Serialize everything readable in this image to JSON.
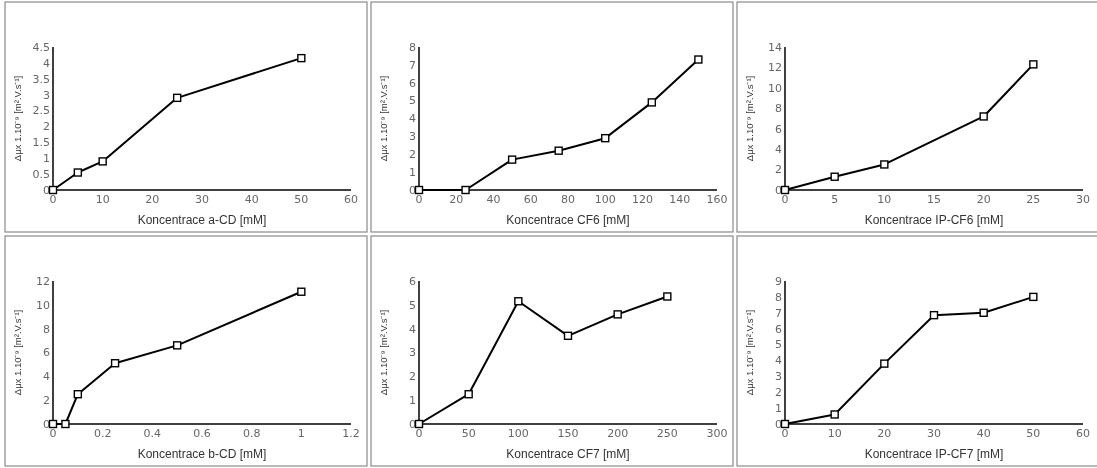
{
  "chart_data": [
    {
      "type": "line",
      "xlabel": "Koncentrace a-CD [mM]",
      "ylabel": "Δμx 1.10⁻⁹ [m².V.s⁻¹]",
      "marker": "square",
      "grid": false,
      "xlim": [
        0,
        60
      ],
      "xticks": [
        0,
        10,
        20,
        30,
        40,
        50,
        60
      ],
      "ylim": [
        0,
        4.5
      ],
      "yticks": [
        0,
        0.5,
        1,
        1.5,
        2,
        2.5,
        3,
        3.5,
        4,
        4.5
      ],
      "series": [
        {
          "color": "#000000",
          "x": [
            0,
            5,
            10,
            25,
            50
          ],
          "values": [
            0,
            0.55,
            0.9,
            2.9,
            4.15
          ]
        }
      ]
    },
    {
      "type": "line",
      "xlabel": "Koncentrace CF6 [mM]",
      "ylabel": "Δμx 1.10⁻⁹ [m².V.s⁻¹]",
      "marker": "square",
      "grid": false,
      "xlim": [
        0,
        160
      ],
      "xticks": [
        0,
        20,
        40,
        60,
        80,
        100,
        120,
        140,
        160
      ],
      "ylim": [
        0,
        8
      ],
      "yticks": [
        0,
        1,
        2,
        3,
        4,
        5,
        6,
        7,
        8
      ],
      "series": [
        {
          "color": "#000000",
          "x": [
            0,
            25,
            50,
            75,
            100,
            125,
            150
          ],
          "values": [
            0,
            0,
            1.7,
            2.2,
            2.9,
            4.9,
            7.3
          ]
        }
      ]
    },
    {
      "type": "line",
      "xlabel": "Koncentrace IP-CF6 [mM]",
      "ylabel": "Δμx 1.10⁻⁹ [m².V.s⁻¹]",
      "marker": "square",
      "grid": false,
      "xlim": [
        0,
        30
      ],
      "xticks": [
        0,
        5,
        10,
        15,
        20,
        25,
        30
      ],
      "ylim": [
        0,
        14
      ],
      "yticks": [
        0,
        2,
        4,
        6,
        8,
        10,
        12,
        14
      ],
      "series": [
        {
          "color": "#000000",
          "x": [
            0,
            5,
            10,
            20,
            25
          ],
          "values": [
            0,
            1.3,
            2.5,
            7.2,
            12.3
          ]
        }
      ]
    },
    {
      "type": "line",
      "xlabel": "Koncentrace b-CD [mM]",
      "ylabel": "Δμx 1.10⁻⁹ [m².V.s⁻¹]",
      "marker": "square",
      "grid": false,
      "xlim": [
        0,
        1.2
      ],
      "xticks": [
        0,
        0.2,
        0.4,
        0.6,
        0.8,
        1,
        1.2
      ],
      "ylim": [
        0,
        12
      ],
      "yticks": [
        0,
        2,
        4,
        6,
        8,
        10,
        12
      ],
      "series": [
        {
          "color": "#000000",
          "x": [
            0,
            0.05,
            0.1,
            0.25,
            0.5,
            1
          ],
          "values": [
            0,
            0,
            2.5,
            5.1,
            6.6,
            11.1
          ]
        }
      ]
    },
    {
      "type": "line",
      "xlabel": "Koncentrace CF7 [mM]",
      "ylabel": "Δμx 1.10⁻⁹ [m².V.s⁻¹]",
      "marker": "square",
      "grid": false,
      "xlim": [
        0,
        300
      ],
      "xticks": [
        0,
        50,
        100,
        150,
        200,
        250,
        300
      ],
      "ylim": [
        0,
        6
      ],
      "yticks": [
        0,
        1,
        2,
        3,
        4,
        5,
        6
      ],
      "series": [
        {
          "color": "#000000",
          "x": [
            0,
            50,
            100,
            150,
            200,
            250
          ],
          "values": [
            0,
            1.25,
            5.15,
            3.7,
            4.6,
            5.35
          ]
        }
      ]
    },
    {
      "type": "line",
      "xlabel": "Koncentrace IP-CF7 [mM]",
      "ylabel": "Δμx 1.10⁻⁹ [m².V.s⁻¹]",
      "marker": "square",
      "grid": false,
      "xlim": [
        0,
        60
      ],
      "xticks": [
        0,
        10,
        20,
        30,
        40,
        50,
        60
      ],
      "ylim": [
        0,
        9
      ],
      "yticks": [
        0,
        1,
        2,
        3,
        4,
        5,
        6,
        7,
        8,
        9
      ],
      "series": [
        {
          "color": "#000000",
          "x": [
            0,
            10,
            20,
            30,
            40,
            50
          ],
          "values": [
            0,
            0.6,
            3.8,
            6.85,
            7.0,
            8.0
          ]
        }
      ]
    }
  ]
}
